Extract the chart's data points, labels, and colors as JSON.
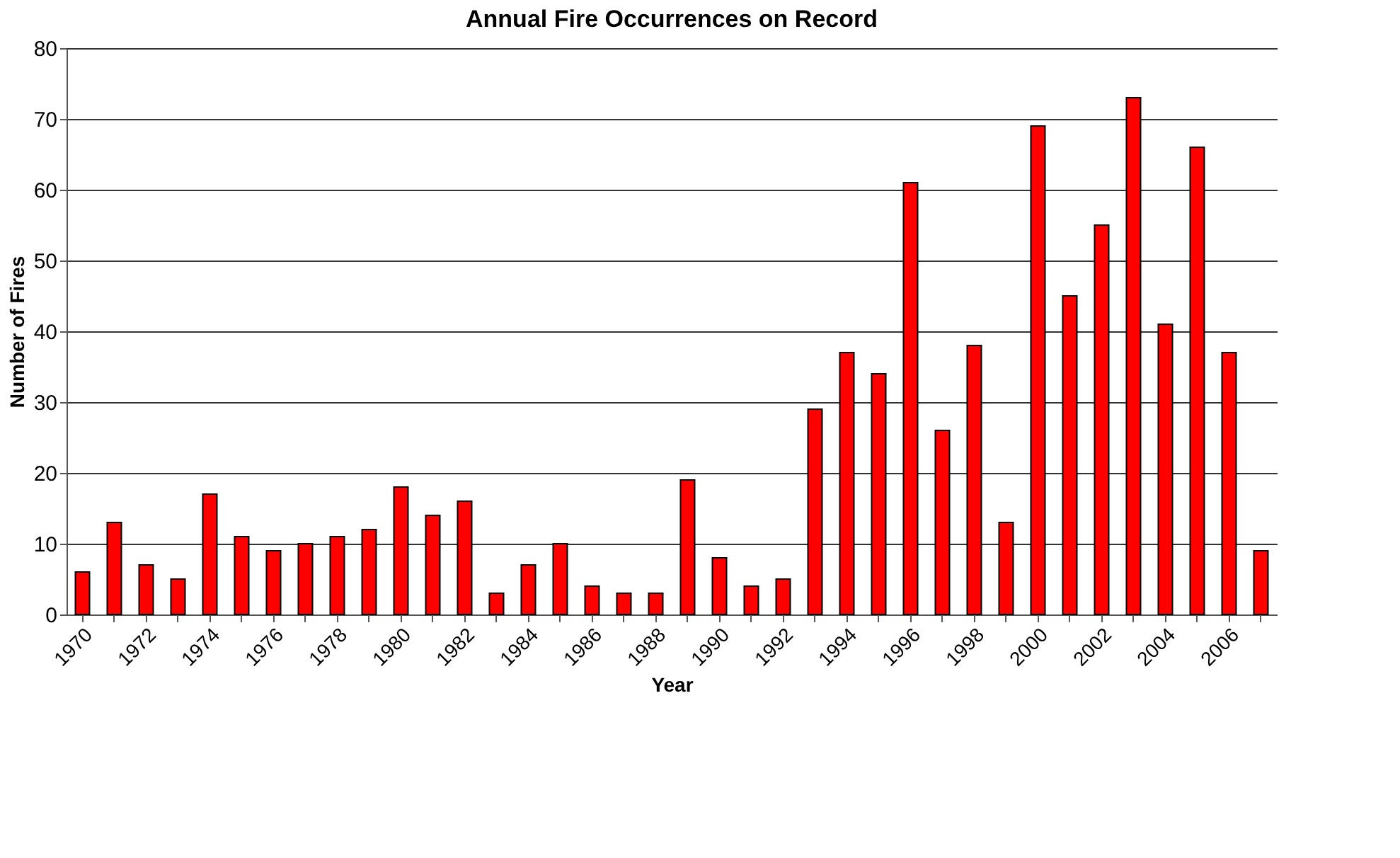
{
  "chart_data": {
    "type": "bar",
    "title": "Annual Fire Occurrences on Record",
    "xlabel": "Year",
    "ylabel": "Number of Fires",
    "categories": [
      "1970",
      null,
      "1972",
      null,
      "1974",
      null,
      "1976",
      null,
      "1978",
      null,
      "1980",
      null,
      "1982",
      null,
      "1984",
      null,
      "1986",
      null,
      "1988",
      null,
      "1990",
      null,
      "1992",
      null,
      "1994",
      null,
      "1996",
      null,
      "1998",
      null,
      "2000",
      null,
      "2002",
      null,
      "2004",
      null,
      "2006",
      null
    ],
    "values": [
      6,
      13,
      7,
      5,
      17,
      11,
      9,
      10,
      11,
      12,
      18,
      14,
      16,
      3,
      7,
      10,
      4,
      3,
      3,
      19,
      8,
      4,
      5,
      29,
      37,
      34,
      61,
      26,
      38,
      13,
      69,
      45,
      55,
      73,
      41,
      66,
      37,
      9
    ],
    "color": "#ff0000",
    "ylim": [
      0,
      80
    ],
    "yticks": [
      0,
      10,
      20,
      30,
      40,
      50,
      60,
      70,
      80
    ],
    "grid": "y"
  }
}
